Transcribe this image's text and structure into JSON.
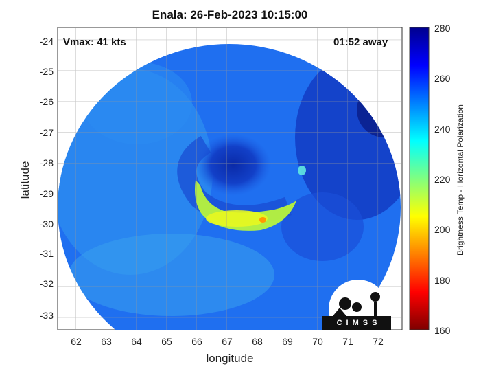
{
  "plot": {
    "title": "Enala: 26-Feb-2023 10:15:00",
    "vmax_label": "Vmax: 41 kts",
    "time_label": "01:52 away",
    "xlabel": "longitude",
    "ylabel": "latitude",
    "colorbar_label": "Brightness Temp - Horizontal Polarization",
    "logo_text": "CIMSS"
  },
  "axes": {
    "x_ticks": [
      "62",
      "63",
      "64",
      "65",
      "66",
      "67",
      "68",
      "69",
      "70",
      "71",
      "72"
    ],
    "y_ticks": [
      "-24",
      "-25",
      "-26",
      "-27",
      "-28",
      "-29",
      "-30",
      "-31",
      "-32",
      "-33"
    ],
    "colorbar_ticks": [
      "280",
      "260",
      "240",
      "220",
      "200",
      "180",
      "160"
    ],
    "lon_range": [
      61.4,
      72.8
    ],
    "lat_range": [
      -33.4,
      -23.6
    ],
    "colorbar_range": [
      160,
      280
    ],
    "grid": true
  },
  "colormap": [
    "#7f0000",
    "#ff0000",
    "#ff8000",
    "#ffff00",
    "#80ff80",
    "#00ffff",
    "#0080ff",
    "#0000ff",
    "#00008f"
  ],
  "image_content": {
    "storm_center": {
      "lon": 67.0,
      "lat": -28.0
    },
    "warmest_spot": {
      "lon": 68.1,
      "lat": -29.8,
      "value": 195
    },
    "swath": "circular microwave swath centered near 67.3E, 28.8S"
  }
}
